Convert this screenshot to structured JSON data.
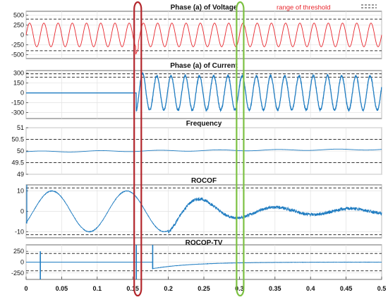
{
  "figure": {
    "legend_label": "range of threshold",
    "colors": {
      "voltage": "#e8262d",
      "signal": "#1f7cc1",
      "threshold": "#333333",
      "grid": "#e2e2e2",
      "marker_red": "#b3262c",
      "marker_green": "#7cc142"
    },
    "markers": [
      {
        "color": "red",
        "x_range": [
          0.152,
          0.162
        ]
      },
      {
        "color": "green",
        "x_range": [
          0.296,
          0.306
        ]
      }
    ]
  },
  "chart_data": [
    {
      "type": "line",
      "title": "Phase (a) of Voltage",
      "ylim": [
        -600,
        600
      ],
      "yticks": [
        500,
        250,
        0,
        -250,
        -500
      ],
      "thresholds": [
        400,
        -400
      ],
      "x_range": [
        0,
        0.5
      ],
      "series": [
        {
          "description": "50 Hz sinusoid, amplitude ≈ 300, spike at the 0.155 disturbance",
          "frequency_hz": 50,
          "amplitude": 300,
          "start": 0,
          "disturbance_at": 0.155,
          "disturbance_min": -500
        }
      ]
    },
    {
      "type": "line",
      "title": "Phase (a) of Current",
      "ylim": [
        -390,
        340
      ],
      "yticks": [
        300,
        150,
        0,
        -150,
        -300
      ],
      "thresholds": [
        290,
        240
      ],
      "x_range": [
        0,
        0.5
      ],
      "series": [
        {
          "description": "zero until 0.155, then 50 Hz sinusoid, amplitude ≈ 260 (first peak ≈ 300)",
          "frequency_hz": 50,
          "amplitude": 260,
          "start": 0.155,
          "first_peak": 300
        }
      ]
    },
    {
      "type": "line",
      "title": "Frequency",
      "ylim": [
        49,
        51
      ],
      "yticks": [
        51,
        50.5,
        50,
        49.5,
        49
      ],
      "thresholds": [
        50.5,
        49.5
      ],
      "x_range": [
        0,
        0.5
      ],
      "series": [
        {
          "description": "≈50 Hz, slight ripple, rising slowly to ≈50.08",
          "start_value": 49.95,
          "end_value": 50.08
        }
      ]
    },
    {
      "type": "line",
      "title": "ROCOF",
      "ylim": [
        -13,
        13
      ],
      "yticks": [
        10,
        0,
        -10
      ],
      "thresholds": [
        11.5,
        -11.5
      ],
      "x_range": [
        0,
        0.5
      ],
      "series": [
        {
          "description": "damped oscillation, ≈9.5 Hz, amplitude ≈10 until ≈0.2 then decaying toward 0 with noise",
          "frequency_hz": 9.5,
          "amplitude": 10,
          "decay_start": 0.2
        }
      ]
    },
    {
      "type": "line",
      "title": "ROCOP-TV",
      "ylim": [
        -400,
        400
      ],
      "yticks": [
        250,
        0,
        -250
      ],
      "thresholds": [
        200,
        -200
      ],
      "x_range": [
        0,
        0.5
      ],
      "xticks": [
        0,
        0.05,
        0.1,
        0.15,
        0.2,
        0.25,
        0.3,
        0.35,
        0.4,
        0.45,
        0.5
      ],
      "xticklabels": [
        "0",
        "0.05",
        "0.1",
        "0.15",
        "0.2",
        "0.25",
        "0.3",
        "0.35",
        "0.4",
        "0.45",
        "0.5"
      ],
      "series": [
        {
          "description": "spikes at 0.02, 0.155 and 0.178; after 0.178 starts near -150 and recovers toward 0",
          "spikes": [
            0.02,
            0.155,
            0.178
          ],
          "recovery_start": -150
        }
      ]
    }
  ]
}
